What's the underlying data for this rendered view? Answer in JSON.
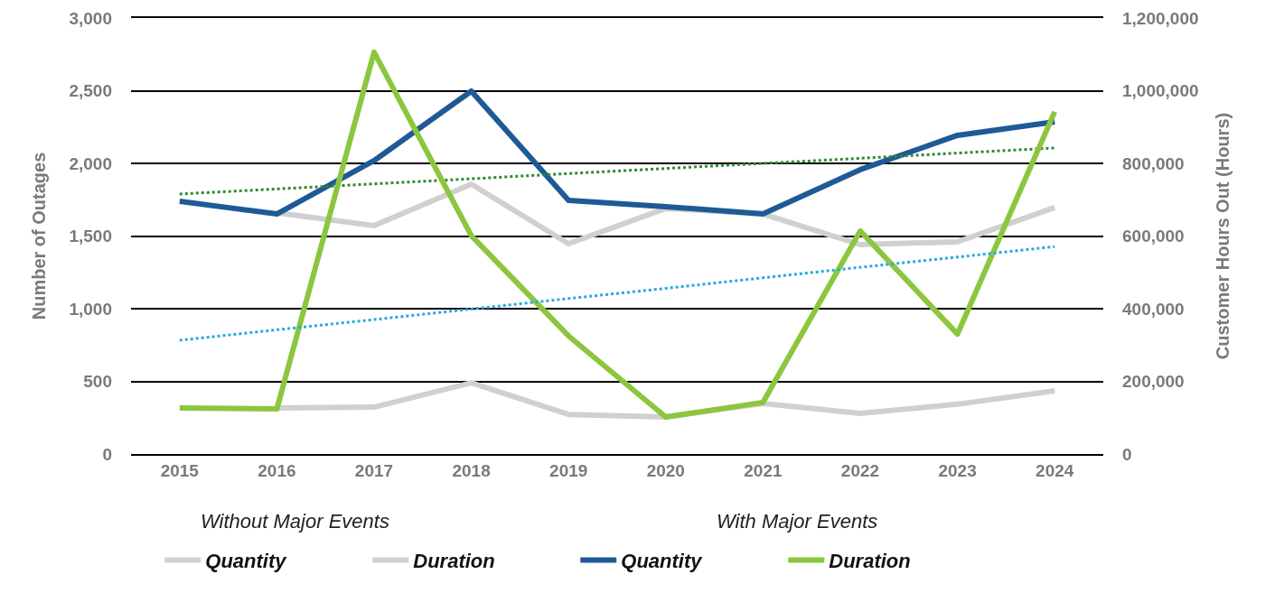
{
  "chart_data": {
    "type": "line",
    "ylabel": "Number of Outages",
    "y2label": "Customer Hours Out (Hours)",
    "categories": [
      "2015",
      "2016",
      "2017",
      "2018",
      "2019",
      "2020",
      "2021",
      "2022",
      "2023",
      "2024"
    ],
    "series": [
      {
        "name": "Quantity",
        "color": "#d0d0d0",
        "values": [
          null,
          1660,
          1571,
          1857,
          1447,
          1690,
          1652,
          1441,
          1460,
          1696
        ]
      },
      {
        "name": "Duration",
        "color": "#d0d0d0",
        "axis": "y2",
        "values": [
          null,
          127000,
          129000,
          196000,
          109000,
          102000,
          139000,
          112000,
          137000,
          174000
        ]
      },
      {
        "name": "Quantity",
        "color": "#1f5a96",
        "values": [
          1739,
          1652,
          2019,
          2497,
          1745,
          1702,
          1652,
          1957,
          2193,
          2286
        ]
      },
      {
        "name": "Duration",
        "color": "#8cc63f",
        "axis": "y2",
        "values": [
          127000,
          124000,
          1106000,
          601000,
          325000,
          102000,
          142000,
          614000,
          330000,
          942000
        ]
      },
      {
        "type": "line",
        "color": "#2e8b2e",
        "line_style": "dotted",
        "values": [
          1789,
          1824,
          1859,
          1894,
          1930,
          1965,
          2000,
          2035,
          2071,
          2106
        ]
      },
      {
        "type": "line",
        "color": "#29a8e0",
        "line_style": "dotted",
        "axis": "y2",
        "values": [
          313000,
          342000,
          370000,
          399000,
          428000,
          456000,
          485000,
          514000,
          542000,
          571000
        ]
      }
    ],
    "ylim": [
      0,
      3000
    ],
    "yticks": [
      0,
      {
        "value": 500,
        "label": "500"
      },
      {
        "value": 1000,
        "label": "1,000"
      },
      {
        "value": 1500,
        "label": "1,500"
      },
      {
        "value": 2000,
        "label": "2,000"
      },
      {
        "value": 2500,
        "label": "2,500"
      },
      {
        "value": 3000,
        "label": "3,000"
      }
    ],
    "y2lim": [
      0,
      1200000
    ],
    "y2ticks": [
      0,
      {
        "value": 200000,
        "label": "200,000"
      },
      {
        "value": 400000,
        "label": "400,000"
      },
      {
        "value": 600000,
        "label": "600,000"
      },
      {
        "value": 800000,
        "label": "800,000"
      },
      {
        "value": 1000000,
        "label": "1,000,000"
      },
      {
        "value": 1200000,
        "label": "1,200,000"
      }
    ],
    "grid": "y",
    "legend": "bottom",
    "line_style": "solid",
    "marker": "none",
    "annotations": [
      "Without Major Events",
      "With Major Events"
    ]
  }
}
